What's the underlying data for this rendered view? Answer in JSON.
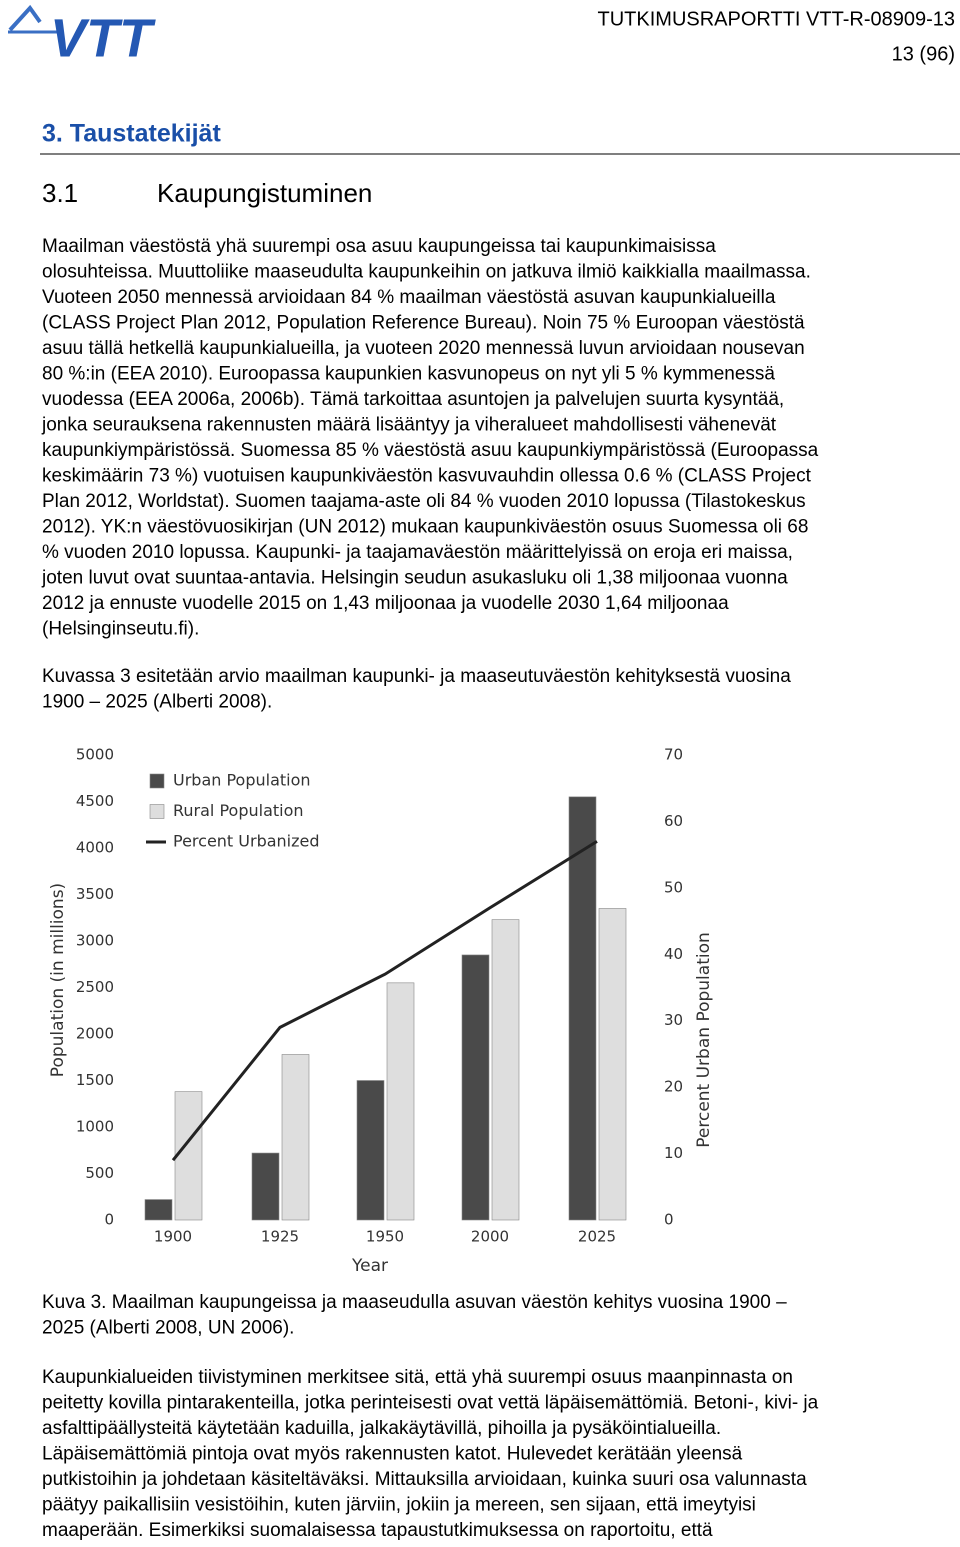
{
  "header": {
    "logo": "VTT",
    "report": "TUTKIMUSRAPORTTI VTT-R-08909-13",
    "page": "13 (96)"
  },
  "section_title": "3. Taustatekijät",
  "subsection": {
    "number": "3.1",
    "title": "Kaupungistuminen"
  },
  "paragraphs": [
    [
      "Maailman väestöstä yhä suurempi osa asuu kaupungeissa tai kaupunkimaisissa",
      "olosuhteissa. Muuttoliike maaseudulta kaupunkeihin on jatkuva ilmiö kaikkialla maailmassa.",
      "Vuoteen 2050 mennessä arvioidaan 84 % maailman väestöstä asuvan kaupunkialueilla",
      "(CLASS Project Plan 2012, Population Reference Bureau). Noin 75 % Euroopan väestöstä",
      "asuu tällä hetkellä kaupunkialueilla, ja vuoteen 2020 mennessä luvun arvioidaan nousevan",
      "80 %:in (EEA 2010). Euroopassa kaupunkien kasvunopeus on nyt yli 5 % kymmenessä",
      "vuodessa (EEA 2006a, 2006b). Tämä tarkoittaa asuntojen ja palvelujen suurta kysyntää,",
      "jonka seurauksena rakennusten määrä lisääntyy ja viheralueet mahdollisesti vähenevät",
      "kaupunkiympäristössä. Suomessa 85 % väestöstä asuu kaupunkiympäristössä (Euroopassa",
      "keskimäärin 73 %) vuotuisen kaupunkiväestön kasvuvauhdin ollessa 0.6 % (CLASS Project",
      "Plan 2012, Worldstat). Suomen taajama-aste oli 84 % vuoden 2010 lopussa (Tilastokeskus",
      "2012). YK:n väestövuosikirjan (UN 2012) mukaan kaupunkiväestön osuus Suomessa oli 68",
      "% vuoden 2010 lopussa. Kaupunki- ja taajamaväestön määrittelyissä on eroja eri maissa,",
      "joten luvut ovat suuntaa-antavia.  Helsingin seudun asukasluku oli 1,38 miljoonaa vuonna",
      "2012 ja ennuste vuodelle 2015 on 1,43 miljoonaa ja vuodelle 2030 1,64 miljoonaa",
      "(Helsinginseutu.fi)."
    ],
    [
      "Kuvassa 3 esitetään arvio maailman kaupunki- ja maaseutuväestön kehityksestä vuosina",
      "1900 – 2025 (Alberti 2008)."
    ],
    [
      "Kaupunkialueiden tiivistyminen merkitsee sitä, että yhä suurempi osuus maanpinnasta on",
      "peitetty kovilla pintarakenteilla, jotka perinteisesti ovat vettä läpäisemättömiä. Betoni-, kivi- ja",
      "asfalttipäällysteitä käytetään kaduilla, jalkakäytävillä, pihoilla ja pysäköintialueilla.",
      "Läpäisemättömiä pintoja ovat myös rakennusten katot. Hulevedet kerätään yleensä",
      "putkistoihin ja johdetaan käsiteltäväksi. Mittauksilla arvioidaan, kuinka suuri osa valunnasta",
      "päätyy paikallisiin vesistöihin, kuten järviin, jokiin ja mereen, sen sijaan, että imeytyisi",
      "maaperään. Esimerkiksi suomalaisessa tapaustutkimuksessa on raportoitu, että"
    ]
  ],
  "caption": [
    "Kuva 3. Maailman kaupungeissa ja maaseudulla asuvan väestön kehitys vuosina 1900 –",
    "2025 (Alberti 2008, UN 2006)."
  ],
  "chart_data": {
    "type": "bar",
    "categories": [
      "1900",
      "1925",
      "1950",
      "2000",
      "2025"
    ],
    "series": [
      {
        "name": "Urban Population",
        "color": "#4a4a4a",
        "values": [
          220,
          720,
          1500,
          2850,
          4550
        ]
      },
      {
        "name": "Rural Population",
        "color": "#dedede",
        "values": [
          1380,
          1780,
          2550,
          3230,
          3350
        ]
      },
      {
        "name": "Percent Urbanized",
        "color": "#222222",
        "type": "line",
        "axis": "y2",
        "values": [
          9,
          29,
          37,
          47,
          57
        ]
      }
    ],
    "ylabel": "Population (in millions)",
    "y2label": "Percent Urban Population",
    "xlabel": "Year",
    "ylim": [
      0,
      5000
    ],
    "yticks": [
      0,
      500,
      1000,
      1500,
      2000,
      2500,
      3000,
      3500,
      4000,
      4500,
      5000
    ],
    "y2lim": [
      0,
      70
    ],
    "y2ticks": [
      0,
      10,
      20,
      30,
      40,
      50,
      60,
      70
    ],
    "legend": "upper left",
    "grid": false
  }
}
